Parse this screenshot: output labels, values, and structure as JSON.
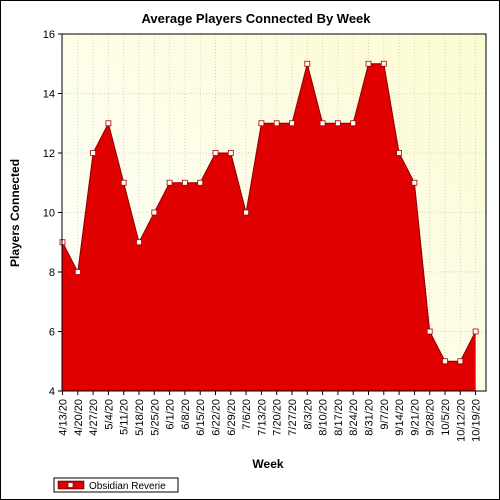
{
  "chart_data": {
    "type": "area",
    "title": "Average Players Connected By Week",
    "xlabel": "Week",
    "ylabel": "Players Connected",
    "ylim": [
      4,
      16
    ],
    "yticks": [
      4,
      6,
      8,
      10,
      12,
      14,
      16
    ],
    "grid": true,
    "legend_position": "bottom-left",
    "categories": [
      "4/13/20",
      "4/20/20",
      "4/27/20",
      "5/4/20",
      "5/11/20",
      "5/18/20",
      "5/25/20",
      "6/1/20",
      "6/8/20",
      "6/15/20",
      "6/22/20",
      "6/29/20",
      "7/6/20",
      "7/13/20",
      "7/20/20",
      "7/27/20",
      "8/3/20",
      "8/10/20",
      "8/17/20",
      "8/24/20",
      "8/31/20",
      "9/7/20",
      "9/14/20",
      "9/21/20",
      "9/28/20",
      "10/5/20",
      "10/12/20",
      "10/19/20"
    ],
    "series": [
      {
        "name": "Obsidian Reverie",
        "color": "#e00000",
        "values": [
          9,
          8,
          12,
          13,
          11,
          9,
          10,
          11,
          11,
          11,
          12,
          12,
          10,
          13,
          13,
          13,
          15,
          13,
          13,
          13,
          15,
          15,
          12,
          11,
          6,
          5,
          5,
          6
        ]
      }
    ]
  }
}
